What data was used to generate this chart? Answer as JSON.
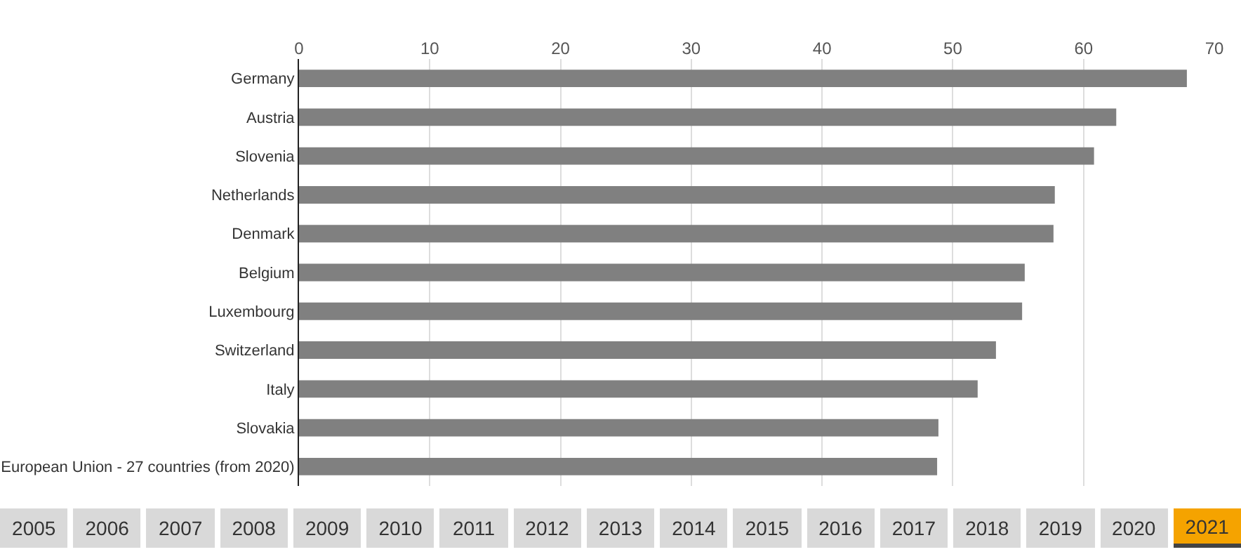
{
  "chart_data": {
    "type": "bar",
    "orientation": "horizontal",
    "categories": [
      "Germany",
      "Austria",
      "Slovenia",
      "Netherlands",
      "Denmark",
      "Belgium",
      "Luxembourg",
      "Switzerland",
      "Italy",
      "Slovakia",
      "European Union - 27 countries (from 2020)"
    ],
    "values": [
      67.9,
      62.5,
      60.8,
      57.8,
      57.7,
      55.5,
      55.3,
      53.3,
      51.9,
      48.9,
      48.8
    ],
    "color": "#808080",
    "xlim": [
      0,
      70
    ],
    "xticks": [
      0,
      10,
      20,
      30,
      40,
      50,
      60,
      70
    ],
    "grid": "x",
    "annotations": [
      "2005",
      "2006",
      "2007",
      "2008",
      "2009",
      "2010",
      "2011",
      "2012",
      "2013",
      "2014",
      "2015",
      "2016",
      "2017",
      "2018",
      "2019",
      "2020",
      "2021"
    ]
  }
}
